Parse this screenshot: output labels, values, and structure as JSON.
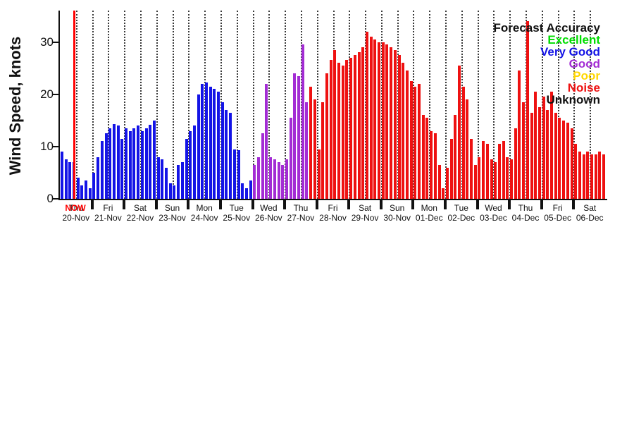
{
  "ylabel": "Wind Speed, knots",
  "now_label": "NOW",
  "legend": {
    "title": "Forecast Accuracy",
    "entries": [
      {
        "label": "Excellent",
        "color": "#00dd00"
      },
      {
        "label": "Very Good",
        "color": "#1414e6"
      },
      {
        "label": "Good",
        "color": "#a32cd4"
      },
      {
        "label": "Poor",
        "color": "#ffd700"
      },
      {
        "label": "Noise",
        "color": "#ee1111"
      },
      {
        "label": "Unknown",
        "color": "#111111"
      }
    ]
  },
  "chart_data": {
    "type": "bar",
    "title": "",
    "xlabel": "",
    "ylabel": "Wind Speed, knots",
    "ylim": [
      0,
      36
    ],
    "yticks": [
      0,
      10,
      20,
      30
    ],
    "bar_interval_hours": 3,
    "grid": "vertical dotted lines every 12 hours",
    "legend_position": "top-right inside plot",
    "accuracy_colors": {
      "excellent": "#00dd00",
      "very_good": "#1414e6",
      "good": "#a32cd4",
      "poor": "#ffd700",
      "noise": "#ee1111",
      "unknown": "#111111"
    },
    "now": {
      "day_index": 0,
      "fraction": 0.44
    },
    "days": [
      {
        "weekday": "Thu",
        "date": "20-Nov",
        "accuracy": "very_good",
        "values": [
          9,
          7.5,
          7,
          7,
          4,
          2.5,
          3.5,
          2
        ]
      },
      {
        "weekday": "Fri",
        "date": "21-Nov",
        "accuracy": "very_good",
        "values": [
          5,
          8,
          11,
          12.5,
          13.5,
          14.3,
          14,
          11.5
        ]
      },
      {
        "weekday": "Sat",
        "date": "22-Nov",
        "accuracy": "very_good",
        "values": [
          13.5,
          13,
          13.5,
          14,
          13,
          13.5,
          14.2,
          15
        ]
      },
      {
        "weekday": "Sun",
        "date": "23-Nov",
        "accuracy": "very_good",
        "values": [
          8,
          7.5,
          6,
          3,
          2.5,
          6.5,
          7,
          11.5
        ]
      },
      {
        "weekday": "Mon",
        "date": "24-Nov",
        "accuracy": "very_good",
        "values": [
          13,
          14,
          20,
          22,
          22.3,
          21.5,
          21,
          20.5
        ]
      },
      {
        "weekday": "Tue",
        "date": "25-Nov",
        "accuracy": "very_good",
        "values": [
          18.5,
          17,
          16.5,
          9.5,
          9.3,
          3,
          2,
          3.5
        ]
      },
      {
        "weekday": "Wed",
        "date": "26-Nov",
        "accuracy": "good",
        "values": [
          6.5,
          8,
          12.5,
          22,
          8,
          7.5,
          7,
          6.5
        ]
      },
      {
        "weekday": "Thu",
        "date": "27-Nov",
        "accuracy": "good",
        "accuracy_overrides": {
          "6": "noise",
          "7": "noise"
        },
        "values": [
          7.5,
          15.5,
          24,
          23.5,
          29.5,
          18.5,
          21.5,
          19
        ]
      },
      {
        "weekday": "Fri",
        "date": "28-Nov",
        "accuracy": "noise",
        "values": [
          9.5,
          18.5,
          24,
          26.5,
          28.5,
          26,
          25.5,
          26.5
        ]
      },
      {
        "weekday": "Sat",
        "date": "29-Nov",
        "accuracy": "noise",
        "values": [
          27,
          27.5,
          28,
          29,
          32,
          31,
          30.5,
          30
        ]
      },
      {
        "weekday": "Sun",
        "date": "30-Nov",
        "accuracy": "noise",
        "values": [
          30,
          29.5,
          29,
          28.5,
          27.5,
          26,
          24.5,
          22.5
        ]
      },
      {
        "weekday": "Mon",
        "date": "01-Dec",
        "accuracy": "noise",
        "values": [
          21.5,
          22,
          16,
          15.5,
          13,
          12.5,
          6.5,
          2
        ]
      },
      {
        "weekday": "Tue",
        "date": "02-Dec",
        "accuracy": "noise",
        "values": [
          6,
          11.5,
          16,
          25.5,
          21.5,
          19,
          11.5,
          6.5
        ]
      },
      {
        "weekday": "Wed",
        "date": "03-Dec",
        "accuracy": "noise",
        "values": [
          8,
          11,
          10.5,
          7.5,
          7,
          10.5,
          11,
          8
        ]
      },
      {
        "weekday": "Thu",
        "date": "04-Dec",
        "accuracy": "noise",
        "values": [
          7.5,
          13.5,
          24.5,
          18.5,
          34,
          16.5,
          20.5,
          17.5
        ]
      },
      {
        "weekday": "Fri",
        "date": "05-Dec",
        "accuracy": "noise",
        "values": [
          19.5,
          17,
          20.5,
          16.5,
          15.5,
          15,
          14.5,
          13.5
        ]
      },
      {
        "weekday": "Sat",
        "date": "06-Dec",
        "accuracy": "noise",
        "values": [
          10.5,
          9,
          8.5,
          9,
          8.5,
          8.5,
          9,
          8.5
        ]
      }
    ]
  }
}
